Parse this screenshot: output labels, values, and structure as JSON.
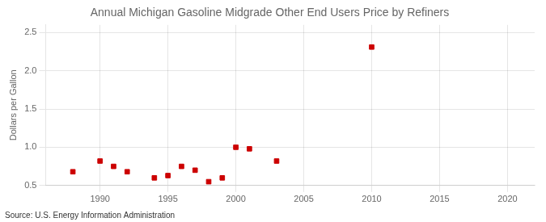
{
  "chart_data": {
    "type": "scatter",
    "title": "Annual Michigan Gasoline Midgrade Other End Users Price by Refiners",
    "y_label": "Dollars per Gallon",
    "annotations": [
      "Source: U.S. Energy Information Administration"
    ],
    "x": [
      1988,
      1990,
      1991,
      1992,
      1994,
      1995,
      1996,
      1997,
      1998,
      1999,
      2000,
      2001,
      2003,
      2010
    ],
    "values": [
      0.68,
      0.82,
      0.75,
      0.68,
      0.6,
      0.63,
      0.75,
      0.7,
      0.55,
      0.6,
      1.0,
      0.98,
      0.82,
      2.31
    ],
    "color": "#cc0000",
    "marker": "square",
    "xlim": [
      1986,
      2022
    ],
    "xticks": [
      1990,
      1995,
      2000,
      2005,
      2010,
      2015,
      2020
    ],
    "ylim": [
      0.5,
      2.6
    ],
    "yticks": [
      0.5,
      {
        "value": 1,
        "label": "1.0"
      },
      1.5,
      {
        "value": 2,
        "label": "2.0"
      },
      2.5
    ],
    "grid": true
  }
}
